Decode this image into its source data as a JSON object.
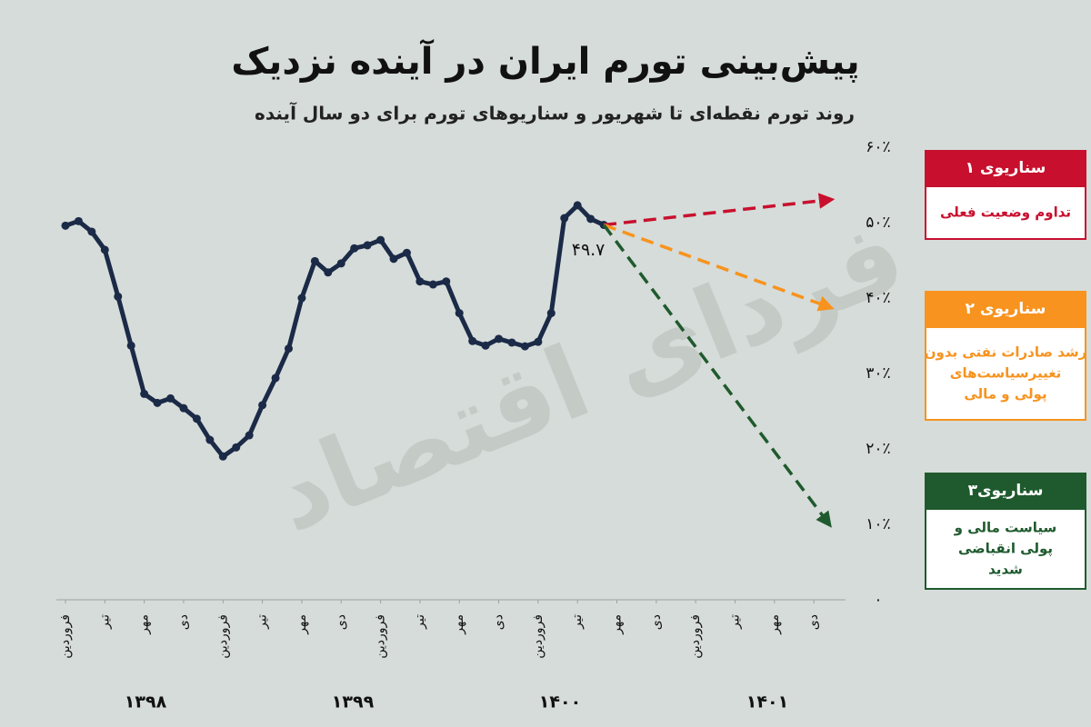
{
  "chart_data": {
    "type": "line",
    "title": "پیش‌بینی تورم ایران در آینده نزدیک",
    "subtitle": "روند تورم نقطه‌ای تا شهریور و سناریوهای تورم برای دو سال آینده",
    "watermark": "فردای اقتصاد",
    "xlim": [
      0,
      59
    ],
    "xticks": [
      {
        "value": 0,
        "label": "فروردین"
      },
      {
        "value": 3,
        "label": "تیر"
      },
      {
        "value": 6,
        "label": "مهر"
      },
      {
        "value": 9,
        "label": "دی"
      },
      {
        "value": 12,
        "label": "فروردین"
      },
      {
        "value": 15,
        "label": "تیر"
      },
      {
        "value": 18,
        "label": "مهر"
      },
      {
        "value": 21,
        "label": "دی"
      },
      {
        "value": 24,
        "label": "فروردین"
      },
      {
        "value": 27,
        "label": "تیر"
      },
      {
        "value": 30,
        "label": "مهر"
      },
      {
        "value": 33,
        "label": "دی"
      },
      {
        "value": 36,
        "label": "فروردین"
      },
      {
        "value": 39,
        "label": "تیر"
      },
      {
        "value": 42,
        "label": "مهر"
      },
      {
        "value": 45,
        "label": "دی"
      },
      {
        "value": 48,
        "label": "فروردین"
      },
      {
        "value": 51,
        "label": "تیر"
      },
      {
        "value": 54,
        "label": "مهر"
      },
      {
        "value": 57,
        "label": "دی"
      }
    ],
    "groups": [
      "۱۳۹۸",
      "۱۳۹۹",
      "۱۴۰۰",
      "۱۴۰۱"
    ],
    "ylim": [
      0,
      60
    ],
    "yticks": [
      {
        "value": 0,
        "label": "۰"
      },
      {
        "value": 10,
        "label": "۱۰٪"
      },
      {
        "value": 20,
        "label": "۲۰٪"
      },
      {
        "value": 30,
        "label": "۳۰٪"
      },
      {
        "value": 40,
        "label": "۴۰٪"
      },
      {
        "value": 50,
        "label": "۵۰٪"
      },
      {
        "value": 60,
        "label": "۶۰٪"
      }
    ],
    "series": [
      {
        "color": "#1b2a47",
        "x": [
          0,
          1,
          2,
          3,
          4,
          5,
          6,
          7,
          8,
          9,
          10,
          11,
          12,
          13,
          14,
          15,
          16,
          17,
          18,
          19,
          20,
          21,
          22,
          23,
          24,
          25,
          26,
          27,
          28,
          29,
          30,
          31,
          32,
          33,
          34,
          35,
          36,
          37,
          38,
          39,
          40,
          41
        ],
        "values": [
          49.6,
          50.2,
          48.8,
          46.4,
          40.2,
          33.7,
          27.3,
          26.1,
          26.7,
          25.4,
          24.0,
          21.2,
          19.0,
          20.2,
          21.8,
          25.8,
          29.4,
          33.3,
          40.0,
          44.9,
          43.4,
          44.6,
          46.6,
          47.0,
          47.7,
          45.2,
          46.0,
          42.2,
          41.8,
          42.2,
          38.0,
          34.3,
          33.7,
          34.6,
          34.1,
          33.6,
          34.2,
          38.0,
          50.6,
          52.3,
          50.5,
          49.7
        ],
        "value_labels": [
          null,
          null,
          null,
          null,
          null,
          null,
          null,
          null,
          null,
          null,
          null,
          null,
          null,
          null,
          null,
          null,
          null,
          null,
          null,
          null,
          null,
          null,
          null,
          null,
          null,
          null,
          null,
          null,
          null,
          null,
          null,
          null,
          null,
          null,
          null,
          null,
          null,
          null,
          null,
          null,
          null,
          "۴۹.۷"
        ]
      },
      {
        "name": "سناریوی ۱",
        "description": [
          "تداوم وضعیت فعلی"
        ],
        "color": "#c8102e",
        "x": [
          41,
          58
        ],
        "values": [
          49.7,
          53.0
        ]
      },
      {
        "name": "سناریوی ۲",
        "description": [
          "رشد صادرات نفتی بدون",
          "تغییرسیاست‌های",
          "پولی و مالی"
        ],
        "color": "#f7931e",
        "x": [
          41,
          58
        ],
        "values": [
          49.7,
          38.9
        ]
      },
      {
        "name": "سناریوی۳",
        "description": [
          "سیاست مالی و",
          "پولی انقباضی",
          "شدید"
        ],
        "color": "#1f5a2e",
        "x": [
          41,
          58
        ],
        "values": [
          49.7,
          10.4
        ]
      }
    ]
  }
}
